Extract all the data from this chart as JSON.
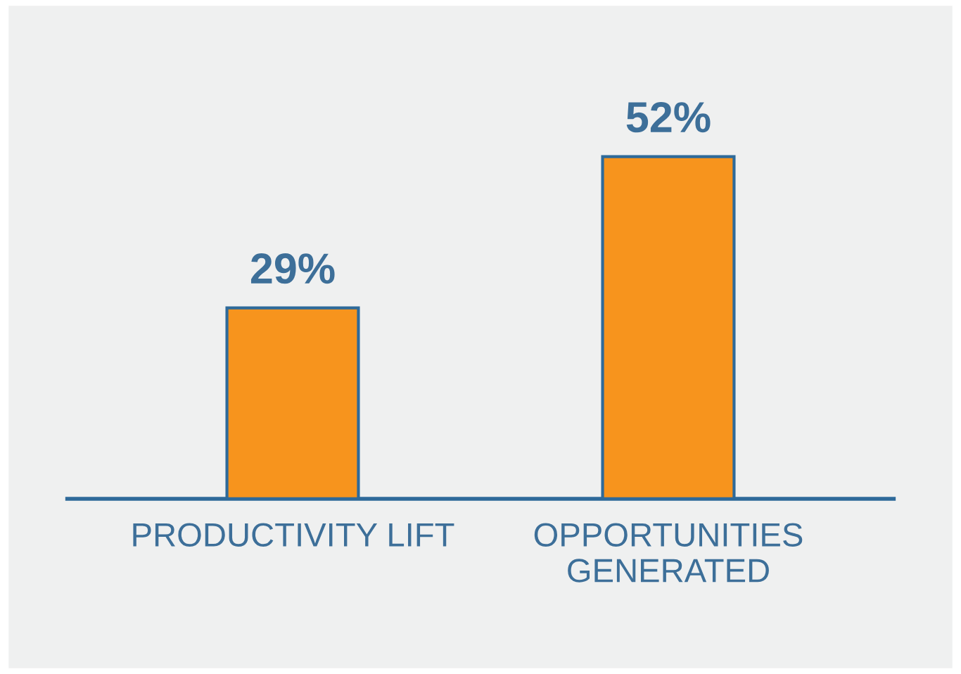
{
  "chart_data": {
    "type": "bar",
    "categories": [
      "PRODUCTIVITY LIFT",
      "OPPORTUNITIES\nGENERATED"
    ],
    "values": [
      29,
      52
    ],
    "value_labels": [
      "29%",
      "52%"
    ],
    "color": "#f7941d",
    "tick_labels": "x"
  }
}
